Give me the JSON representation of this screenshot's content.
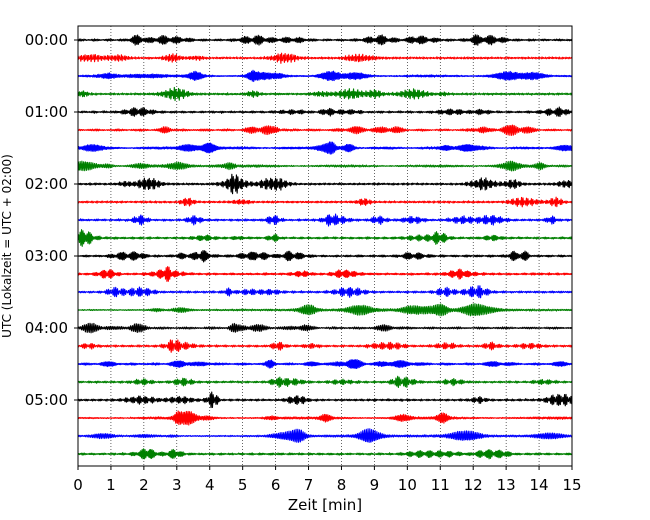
{
  "chart_data": {
    "type": "line",
    "title": "",
    "xlabel": "Zeit  [min]",
    "ylabel": "UTC (Lokalzeit = UTC + 02:00)",
    "xlim": [
      0,
      15
    ],
    "x_ticks": [
      "0",
      "1",
      "2",
      "3",
      "4",
      "5",
      "6",
      "7",
      "8",
      "9",
      "10",
      "11",
      "12",
      "13",
      "14",
      "15"
    ],
    "y_tick_labels": [
      "00:00",
      "01:00",
      "02:00",
      "03:00",
      "04:00",
      "05:00"
    ],
    "grid": "vertical dotted",
    "colors": [
      "#000000",
      "#ff0000",
      "#0000ff",
      "#008000"
    ],
    "trace_count": 24,
    "trace_interval_min": 15
  }
}
